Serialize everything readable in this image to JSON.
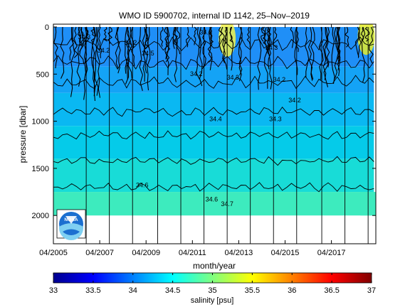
{
  "chart_data": [
    {
      "type": "heatmap",
      "title": "WMO ID 5900702, internal ID 1142, 25–Nov–2019",
      "xlabel": "month/year",
      "ylabel": "pressure [dbar]",
      "x_ticks": [
        "04/2005",
        "04/2007",
        "04/2009",
        "04/2011",
        "04/2013",
        "04/2015",
        "04/2017"
      ],
      "x_range": [
        "2005-04",
        "2019-03"
      ],
      "y_ticks": [
        0,
        500,
        1000,
        1500,
        2000
      ],
      "ylim": [
        2300,
        -30
      ],
      "y_reversed": true,
      "profile_depth_max": 2000,
      "profile_dates": [
        "2006-09",
        "2007-09",
        "2008-09",
        "2009-10",
        "2010-10",
        "2011-10",
        "2012-10",
        "2013-10",
        "2014-10",
        "2015-10",
        "2016-11",
        "2017-11",
        "2018-11"
      ],
      "salinity_layers": [
        {
          "pressure_top": 0,
          "salinity": 34.1,
          "color": "#1f8ff7"
        },
        {
          "pressure_top": 420,
          "salinity": 34.25,
          "color": "#14a3f6"
        },
        {
          "pressure_top": 700,
          "salinity": 34.4,
          "color": "#0ab8f2"
        },
        {
          "pressure_top": 1050,
          "salinity": 34.5,
          "color": "#05cbe9"
        },
        {
          "pressure_top": 1400,
          "salinity": 34.6,
          "color": "#18dcd7"
        },
        {
          "pressure_top": 1750,
          "salinity": 34.7,
          "color": "#3debbe"
        }
      ],
      "contours": [
        {
          "level": "34.2",
          "pressure": 180
        },
        {
          "level": "34.3",
          "pressure": 380
        },
        {
          "level": "34.4",
          "pressure": 590
        },
        {
          "level": "34.5",
          "pressure": 900
        },
        {
          "level": "34.6",
          "pressure": 1150
        },
        {
          "level": "34.65",
          "pressure": 1420
        },
        {
          "level": "34.7",
          "pressure": 1700
        }
      ],
      "contour_labels": [
        {
          "text": "34.2",
          "date": "2007-06",
          "pressure": 270
        },
        {
          "text": "34.3",
          "date": "2006-08",
          "pressure": 130
        },
        {
          "text": "34.2",
          "date": "2008-08",
          "pressure": 190
        },
        {
          "text": "34.5",
          "date": "2009-05",
          "pressure": 300
        },
        {
          "text": "34.2",
          "date": "2011-06",
          "pressure": 520
        },
        {
          "text": "34.3",
          "date": "2013-01",
          "pressure": 560
        },
        {
          "text": "34.3",
          "date": "2014-09",
          "pressure": 240
        },
        {
          "text": "34.2",
          "date": "2015-01",
          "pressure": 580
        },
        {
          "text": "34.2",
          "date": "2015-09",
          "pressure": 800
        },
        {
          "text": "34.3",
          "date": "2014-11",
          "pressure": 1000
        },
        {
          "text": "34.4",
          "date": "2012-04",
          "pressure": 1000
        },
        {
          "text": "34.6",
          "date": "2009-02",
          "pressure": 1700
        },
        {
          "text": "34.6",
          "date": "2012-02",
          "pressure": 1850
        },
        {
          "text": "34.7",
          "date": "2012-10",
          "pressure": 1900
        },
        {
          "text": "34.8",
          "date": "2011-11",
          "pressure": 80
        }
      ],
      "high_salinity_patches": [
        {
          "date": "2012-10",
          "pressure": 120,
          "color": "#f3f34a"
        },
        {
          "date": "2018-10",
          "pressure": 100,
          "color": "#e6ef2a"
        }
      ],
      "colorbar": {
        "label": "salinity [psu]",
        "min": 33,
        "max": 37,
        "ticks": [
          "33",
          "33.5",
          "34",
          "34.5",
          "35",
          "35.5",
          "36",
          "36.5",
          "37"
        ],
        "colormap": "jet"
      },
      "logo": {
        "text": "NOAA",
        "icon": "noaa-logo-icon"
      }
    }
  ]
}
